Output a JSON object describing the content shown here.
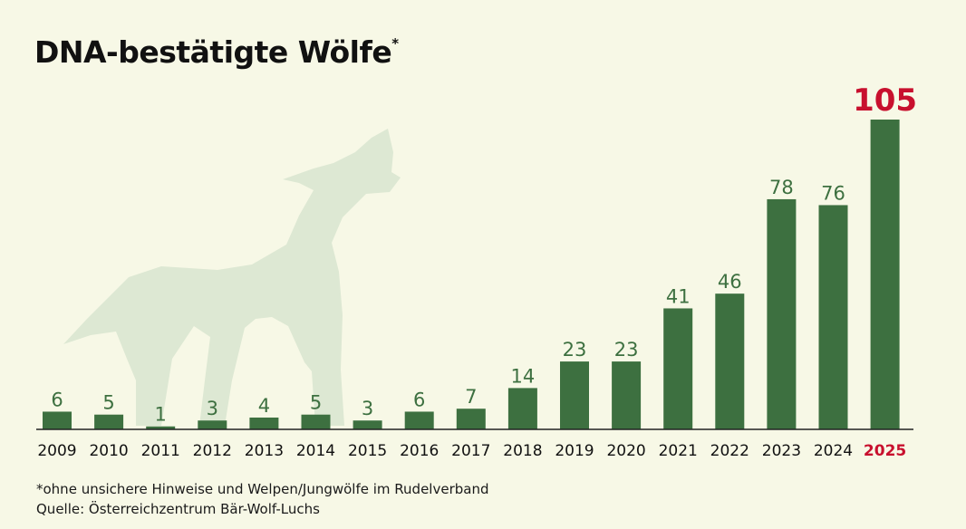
{
  "title": "DNA-bestätigte Wölfe",
  "title_marker": "*",
  "footnote": "*ohne unsichere Hinweise und Welpen/Jungwölfe im Rudelverband",
  "source": "Quelle: Österreichzentrum Bär-Wolf-Luchs",
  "colors": {
    "bar": "#3d7040",
    "value_label": "#3d7040",
    "highlight": "#c8102e",
    "silhouette": "#dde8d3",
    "background": "#f7f8e6",
    "axis": "#222222"
  },
  "chart_data": {
    "type": "bar",
    "categories": [
      "2009",
      "2010",
      "2011",
      "2012",
      "2013",
      "2014",
      "2015",
      "2016",
      "2017",
      "2018",
      "2019",
      "2020",
      "2021",
      "2022",
      "2023",
      "2024",
      "2025"
    ],
    "values": [
      6,
      5,
      1,
      3,
      4,
      5,
      3,
      6,
      7,
      14,
      23,
      23,
      41,
      46,
      78,
      76,
      105
    ],
    "highlight_category": "2025",
    "title": "DNA-bestätigte Wölfe",
    "xlabel": "",
    "ylabel": "",
    "ylim": [
      0,
      105
    ],
    "grid": false,
    "legend": "none",
    "data_labels": true
  }
}
